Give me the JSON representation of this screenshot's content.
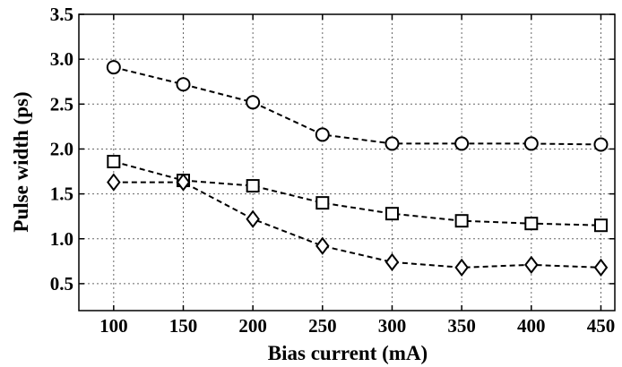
{
  "chart_data": {
    "type": "line",
    "title": "",
    "xlabel": "Bias current (mA)",
    "ylabel": "Pulse width (ps)",
    "xlim": [
      75,
      460
    ],
    "ylim": [
      0.2,
      3.5
    ],
    "grid": true,
    "x_ticks": [
      100,
      150,
      200,
      250,
      300,
      350,
      400,
      450
    ],
    "x_tick_labels": [
      "100",
      "150",
      "200",
      "250",
      "300",
      "350",
      "400",
      "450"
    ],
    "y_ticks": [
      0.5,
      1.0,
      1.5,
      2.0,
      2.5,
      3.0,
      3.5
    ],
    "y_tick_labels": [
      "0.5",
      "1.0",
      "1.5",
      "2.0",
      "2.5",
      "3.0",
      "3.5"
    ],
    "x": [
      100,
      150,
      200,
      250,
      300,
      350,
      400,
      450
    ],
    "series": [
      {
        "marker": "circle",
        "values": [
          2.91,
          2.72,
          2.52,
          2.16,
          2.06,
          2.06,
          2.06,
          2.05
        ]
      },
      {
        "marker": "square",
        "values": [
          1.86,
          1.65,
          1.59,
          1.4,
          1.28,
          1.2,
          1.17,
          1.15
        ]
      },
      {
        "marker": "diamond",
        "values": [
          1.63,
          1.63,
          1.22,
          0.92,
          0.74,
          0.68,
          0.71,
          0.68
        ]
      }
    ]
  }
}
